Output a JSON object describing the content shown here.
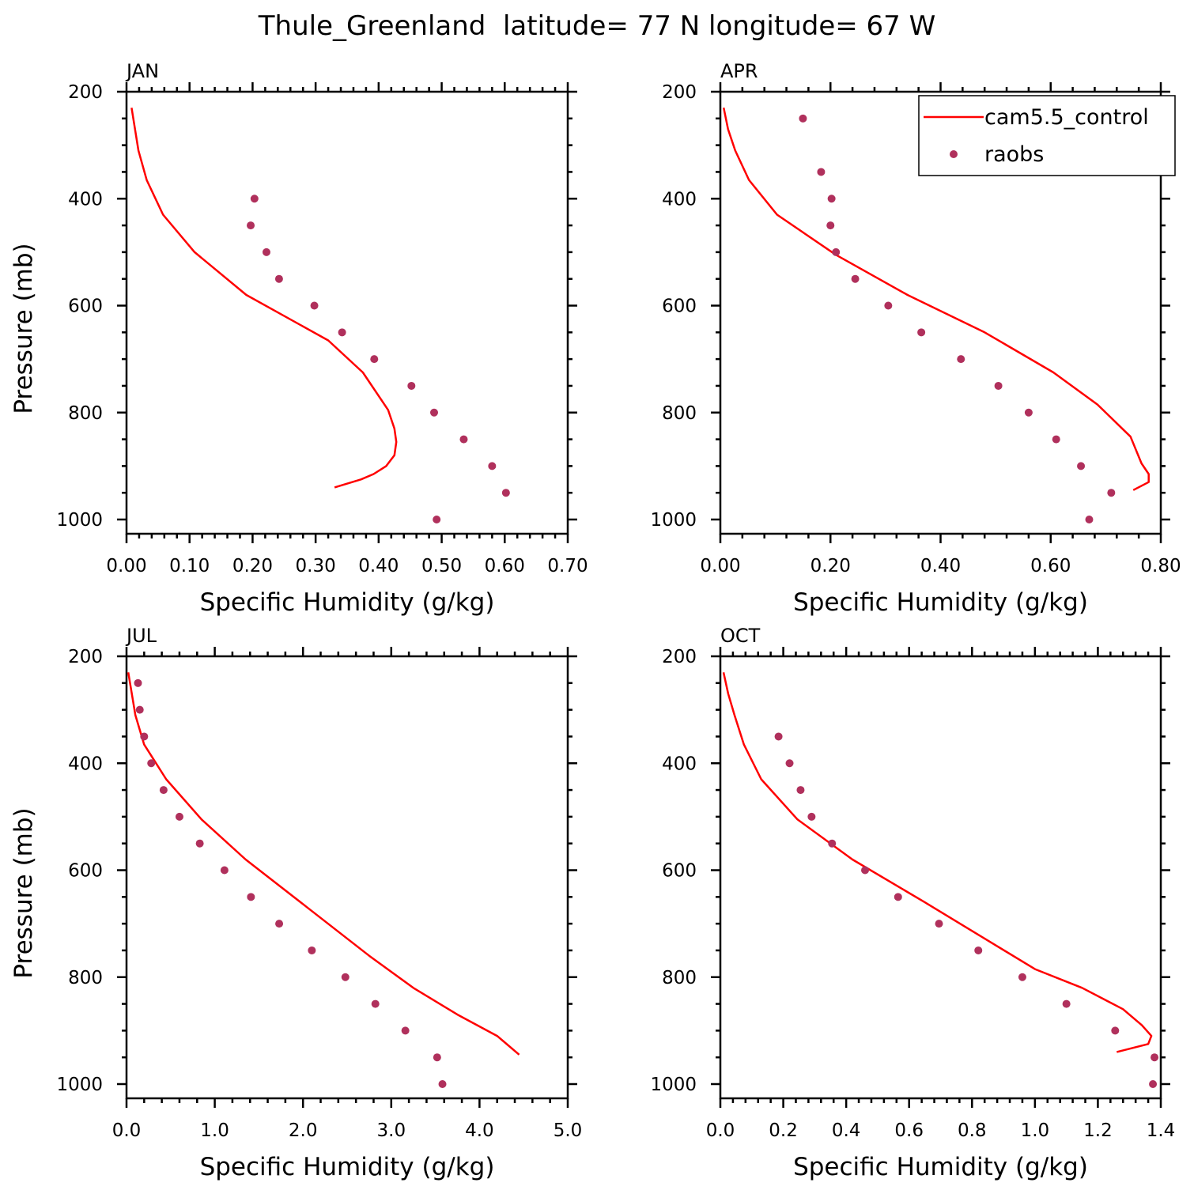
{
  "figure_title": "Thule_Greenland  latitude= 77 N longitude= 67 W",
  "colors": {
    "model_line": "#ff0000",
    "obs_points": "#b0305c"
  },
  "legend": {
    "model_label": "cam5.5_control",
    "obs_label": "raobs"
  },
  "chart_data": [
    {
      "type": "line",
      "panel_label": "JAN",
      "xlabel": "Specific Humidity (g/kg)",
      "ylabel": "Pressure (mb)",
      "xlim": [
        0.0,
        0.7
      ],
      "ylim": [
        1000,
        200
      ],
      "x_ticks": [
        0.0,
        0.1,
        0.2,
        0.3,
        0.4,
        0.5,
        0.6,
        0.7
      ],
      "x_tick_labels": [
        "0.00",
        "0.10",
        "0.20",
        "0.30",
        "0.40",
        "0.50",
        "0.60",
        "0.70"
      ],
      "y_ticks": [
        200,
        400,
        600,
        800,
        1000
      ],
      "y_tick_labels": [
        "200",
        "400",
        "600",
        "800",
        "1000"
      ],
      "series": [
        {
          "name": "cam5.5_control",
          "kind": "line",
          "x": [
            0.008,
            0.019,
            0.032,
            0.058,
            0.108,
            0.19,
            0.32,
            0.375,
            0.415,
            0.425,
            0.428,
            0.425,
            0.412,
            0.392,
            0.372,
            0.33
          ],
          "y": [
            230,
            310,
            365,
            430,
            500,
            580,
            665,
            725,
            795,
            830,
            855,
            880,
            900,
            915,
            925,
            940
          ]
        },
        {
          "name": "raobs",
          "kind": "scatter",
          "x": [
            0.203,
            0.197,
            0.222,
            0.242,
            0.298,
            0.342,
            0.393,
            0.452,
            0.488,
            0.535,
            0.58,
            0.602,
            0.492
          ],
          "y": [
            400,
            450,
            500,
            550,
            600,
            650,
            700,
            750,
            800,
            850,
            900,
            950,
            1000
          ]
        }
      ]
    },
    {
      "type": "line",
      "panel_label": "APR",
      "xlabel": "Specific Humidity (g/kg)",
      "ylabel": "",
      "xlim": [
        0.0,
        0.8
      ],
      "ylim": [
        1000,
        200
      ],
      "x_ticks": [
        0.0,
        0.2,
        0.4,
        0.6,
        0.8
      ],
      "x_tick_labels": [
        "0.00",
        "0.20",
        "0.40",
        "0.60",
        "0.80"
      ],
      "y_ticks": [
        200,
        400,
        600,
        800,
        1000
      ],
      "y_tick_labels": [
        "200",
        "400",
        "600",
        "800",
        "1000"
      ],
      "legend_position": "top-right",
      "series": [
        {
          "name": "cam5.5_control",
          "kind": "line",
          "x": [
            0.006,
            0.014,
            0.027,
            0.052,
            0.103,
            0.21,
            0.34,
            0.48,
            0.605,
            0.685,
            0.72,
            0.745,
            0.765,
            0.778,
            0.778,
            0.75
          ],
          "y": [
            230,
            270,
            310,
            365,
            430,
            505,
            580,
            650,
            725,
            785,
            820,
            845,
            895,
            915,
            930,
            945
          ]
        },
        {
          "name": "raobs",
          "kind": "scatter",
          "x": [
            0.15,
            0.183,
            0.202,
            0.2,
            0.21,
            0.245,
            0.305,
            0.365,
            0.437,
            0.505,
            0.56,
            0.61,
            0.655,
            0.71,
            0.67
          ],
          "y": [
            250,
            350,
            400,
            450,
            500,
            550,
            600,
            650,
            700,
            750,
            800,
            850,
            900,
            950,
            1000
          ]
        }
      ]
    },
    {
      "type": "line",
      "panel_label": "JUL",
      "xlabel": "Specific Humidity (g/kg)",
      "ylabel": "Pressure (mb)",
      "xlim": [
        0.0,
        5.0
      ],
      "ylim": [
        1000,
        200
      ],
      "x_ticks": [
        0.0,
        1.0,
        2.0,
        3.0,
        4.0,
        5.0
      ],
      "x_tick_labels": [
        "0.0",
        "1.0",
        "2.0",
        "3.0",
        "4.0",
        "5.0"
      ],
      "y_ticks": [
        200,
        400,
        600,
        800,
        1000
      ],
      "y_tick_labels": [
        "200",
        "400",
        "600",
        "800",
        "1000"
      ],
      "series": [
        {
          "name": "cam5.5_control",
          "kind": "line",
          "x": [
            0.02,
            0.06,
            0.1,
            0.2,
            0.45,
            0.85,
            1.35,
            2.05,
            2.75,
            3.25,
            3.5,
            3.75,
            4.2,
            4.45
          ],
          "y": [
            230,
            270,
            310,
            365,
            430,
            505,
            580,
            670,
            760,
            820,
            845,
            870,
            910,
            945
          ]
        },
        {
          "name": "raobs",
          "kind": "scatter",
          "x": [
            0.13,
            0.15,
            0.2,
            0.28,
            0.42,
            0.6,
            0.83,
            1.11,
            1.41,
            1.73,
            2.1,
            2.48,
            2.82,
            3.16,
            3.52,
            3.58
          ],
          "y": [
            250,
            300,
            350,
            400,
            450,
            500,
            550,
            600,
            650,
            700,
            750,
            800,
            850,
            900,
            950,
            1000
          ]
        }
      ]
    },
    {
      "type": "line",
      "panel_label": "OCT",
      "xlabel": "Specific Humidity (g/kg)",
      "ylabel": "",
      "xlim": [
        0.0,
        1.4
      ],
      "ylim": [
        1000,
        200
      ],
      "x_ticks": [
        0.0,
        0.2,
        0.4,
        0.6,
        0.8,
        1.0,
        1.2,
        1.4
      ],
      "x_tick_labels": [
        "0.0",
        "0.2",
        "0.4",
        "0.6",
        "0.8",
        "1.0",
        "1.2",
        "1.4"
      ],
      "y_ticks": [
        200,
        400,
        600,
        800,
        1000
      ],
      "y_tick_labels": [
        "200",
        "400",
        "600",
        "800",
        "1000"
      ],
      "series": [
        {
          "name": "cam5.5_control",
          "kind": "line",
          "x": [
            0.01,
            0.025,
            0.045,
            0.075,
            0.13,
            0.245,
            0.42,
            0.65,
            0.86,
            1.0,
            1.15,
            1.28,
            1.34,
            1.37,
            1.36,
            1.26
          ],
          "y": [
            230,
            270,
            310,
            365,
            430,
            505,
            580,
            660,
            735,
            785,
            820,
            860,
            890,
            910,
            925,
            940
          ]
        },
        {
          "name": "raobs",
          "kind": "scatter",
          "x": [
            0.185,
            0.22,
            0.255,
            0.29,
            0.355,
            0.46,
            0.565,
            0.695,
            0.82,
            0.96,
            1.1,
            1.255,
            1.38,
            1.375
          ],
          "y": [
            350,
            400,
            450,
            500,
            550,
            600,
            650,
            700,
            750,
            800,
            850,
            900,
            950,
            1000
          ]
        }
      ]
    }
  ]
}
